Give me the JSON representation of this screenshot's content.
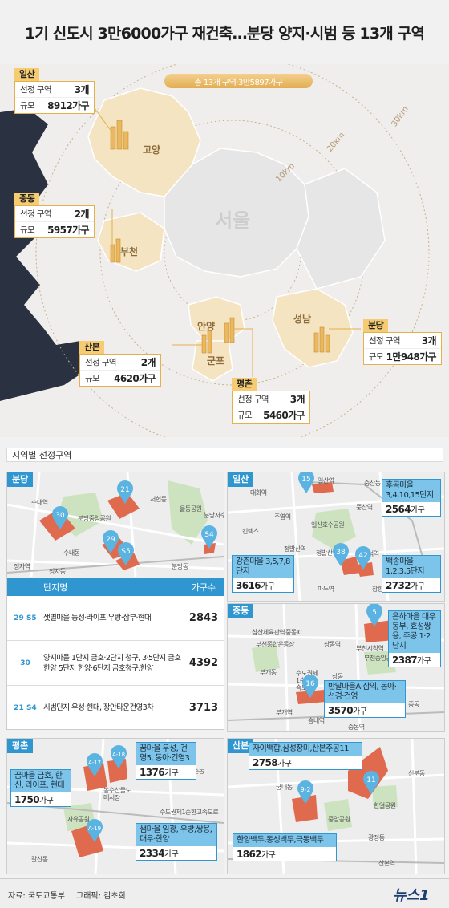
{
  "title": "1기 신도시 3만6000가구 재건축…분당 양지·시범 등 13개 구역",
  "summary_pill": "총 13개 구역·3만5897가구",
  "map_labels": {
    "seoul": "서울",
    "goyang": "고양",
    "bucheon": "부천",
    "anyang": "안양",
    "gunpo": "군포",
    "seongnam": "성남",
    "ring_10": "10km",
    "ring_20": "20km",
    "ring_30": "30km"
  },
  "cities": [
    {
      "name": "일산",
      "zones_label": "선정 구역",
      "zones": "3개",
      "scale_label": "규모",
      "scale": "8912가구"
    },
    {
      "name": "중동",
      "zones_label": "선정 구역",
      "zones": "2개",
      "scale_label": "규모",
      "scale": "5957가구"
    },
    {
      "name": "산본",
      "zones_label": "선정 구역",
      "zones": "2개",
      "scale_label": "규모",
      "scale": "4620가구"
    },
    {
      "name": "평촌",
      "zones_label": "선정 구역",
      "zones": "3개",
      "scale_label": "규모",
      "scale": "5460가구"
    },
    {
      "name": "분당",
      "zones_label": "선정 구역",
      "zones": "3개",
      "scale_label": "규모",
      "scale": "1만948가구"
    }
  ],
  "section_title": "지역별 선정구역",
  "bundang": {
    "tag": "분당",
    "pins": [
      "30",
      "21",
      "29",
      "S5",
      "S4"
    ],
    "labels": [
      "서현동",
      "수내역",
      "분당중앙공원",
      "율동공원",
      "분당저수지",
      "수내동",
      "정자동",
      "정자역",
      "분당동"
    ],
    "table": {
      "col_name": "단지명",
      "col_count": "가구수",
      "rows": [
        {
          "pins": [
            "29",
            "S5"
          ],
          "name": "샛별마을 동성·라이프·우방·삼부·현대",
          "count": "2843"
        },
        {
          "pins": [
            "30"
          ],
          "name": "양지마을 1단지 금호·2단지 청구, 3·5단지 금호한양 5단지 한양·6단지 금호청구,한양",
          "count": "4392"
        },
        {
          "pins": [
            "21",
            "S4"
          ],
          "name": "시범단지 우성·현대, 장안타운건영3차",
          "count": "3713"
        }
      ]
    }
  },
  "ilsan": {
    "tag": "일산",
    "labels": [
      "일산역",
      "중산동",
      "대화역",
      "풍산역",
      "주엽역",
      "킨텍스",
      "일산호수공원",
      "정발산역",
      "정발산동",
      "마두역",
      "백석역",
      "장항동"
    ],
    "cards": [
      {
        "pin": "15",
        "title": "후곡마을 3,4,10,15단지",
        "value": "2564",
        "unit": "가구"
      },
      {
        "pin": "38",
        "title": "강촌마을 3,5,7,8단지",
        "value": "3616",
        "unit": "가구"
      },
      {
        "pin": "42",
        "title": "백송마을 1,2,3,5단지",
        "value": "2732",
        "unit": "가구"
      }
    ]
  },
  "jungdong": {
    "tag": "중동",
    "labels": [
      "삼산체육관역",
      "중동IC",
      "상동역",
      "부천시청역",
      "부천종합운동장",
      "부개동",
      "부천중앙공원",
      "수도권제1순환고속도로",
      "상동",
      "부개역",
      "송내역",
      "중동역",
      "중동"
    ],
    "cards": [
      {
        "pin": "5",
        "title": "은하마을 대우동부, 효성쌍용, 주공 1·2단지",
        "value": "2387",
        "unit": "가구"
      },
      {
        "pin": "16",
        "title": "반달마을A 삼익, 동아·선경·건영",
        "value": "3570",
        "unit": "가구"
      }
    ]
  },
  "pyeongchon": {
    "tag": "평촌",
    "labels": [
      "내손동",
      "농수산물도매시장",
      "자유공원",
      "수도권제1순환고속도로",
      "갈산동"
    ],
    "pins": [
      "A-17",
      "A-18",
      "A-19"
    ],
    "cards": [
      {
        "title": "꿈마을 금호, 한신, 라이프, 현대",
        "value": "1750",
        "unit": "가구"
      },
      {
        "title": "꿈마을 우성, 건영5, 동아·건영3",
        "value": "1376",
        "unit": "가구"
      },
      {
        "title": "샘마을 임광, 우방,쌍용,대우·한양",
        "value": "2334",
        "unit": "가구"
      }
    ]
  },
  "sanbon": {
    "tag": "산본",
    "labels": [
      "신분동",
      "궁내동",
      "중앙공원",
      "한얼공원",
      "광정동",
      "산본역"
    ],
    "pins": [
      "9-2",
      "11"
    ],
    "cards": [
      {
        "title": "자이백합,삼성장미,산본주공11",
        "value": "2758",
        "unit": "가구"
      },
      {
        "title": "한양백두,동성백두,극동백두",
        "value": "1862",
        "unit": "가구"
      }
    ]
  },
  "footer": {
    "source": "자료: 국토교통부",
    "graphic": "그래픽: 김초희",
    "logo": "뉴스1"
  },
  "colors": {
    "accent_gold": "#f6cc72",
    "pin_blue": "#2f96d0",
    "zone_red": "#e06a4e"
  }
}
